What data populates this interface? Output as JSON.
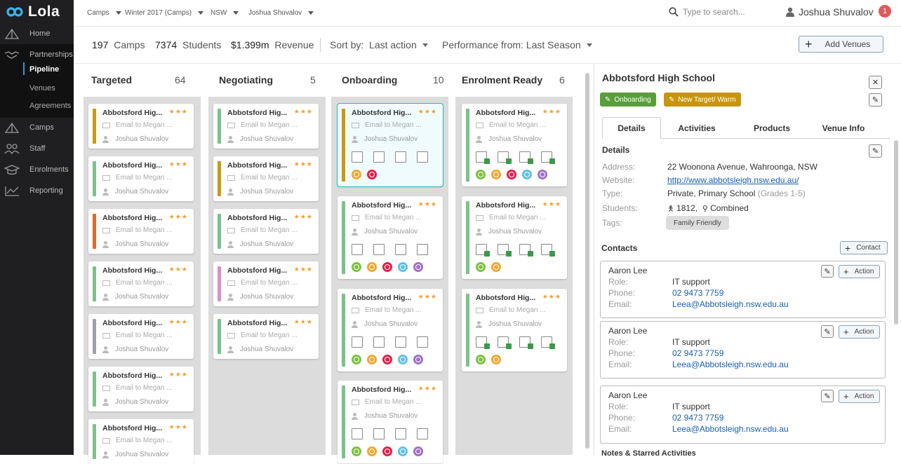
{
  "app": {
    "name": "Lola"
  },
  "sidebar": {
    "nav": [
      {
        "label": "Home",
        "icon": "home-icon"
      },
      {
        "label": "Partnerships",
        "icon": "handshake-icon"
      },
      {
        "label": "Camps",
        "icon": "tent-icon"
      },
      {
        "label": "Staff",
        "icon": "staff-icon"
      },
      {
        "label": "Enrolments",
        "icon": "graduation-cap-icon"
      },
      {
        "label": "Reporting",
        "icon": "line-chart-icon"
      }
    ],
    "sub": [
      {
        "label": "Pipeline",
        "active": true
      },
      {
        "label": "Venues"
      },
      {
        "label": "Agreements"
      }
    ]
  },
  "topbar": {
    "crumbs": [
      "Camps",
      "Winter 2017 (Camps)",
      "NSW",
      "Joshua Shuvalov"
    ],
    "search_placeholder": "Type to search...",
    "user": "Joshua Shuvalov",
    "notifications": "1"
  },
  "stats": {
    "camps_num": "197",
    "camps_label": "Camps",
    "students_num": "7374",
    "students_label": "Students",
    "revenue_num": "$1.399m",
    "revenue_label": "Revenue",
    "sort_label": "Sort by:",
    "sort_value": "Last action",
    "perf_label": "Performance from:",
    "perf_value": "Last Season",
    "add_venues": "Add Venues"
  },
  "card_text": {
    "title": "Abbotsford Hig...",
    "stars": "★★★",
    "email": "Email to Megan ...",
    "user": "Joshua Shuvalov"
  },
  "columns": [
    {
      "name": "Targeted",
      "count": "64"
    },
    {
      "name": "Negotiating",
      "count": "5"
    },
    {
      "name": "Onboarding",
      "count": "10"
    },
    {
      "name": "Enrolment Ready",
      "count": "6"
    }
  ],
  "colors": {
    "gold": "#c99a17",
    "green": "#7cc28a",
    "orange": "#e06a24",
    "grey": "#9aa4a8",
    "pink": "#d890c8",
    "dot_green": "#7cc040",
    "dot_orange": "#f0a830",
    "dot_red": "#e0204a",
    "dot_blue": "#60c0e8",
    "dot_purple": "#a070c8"
  },
  "detail": {
    "title": "Abbotsford High School",
    "tag1": "Onboarding",
    "tag2": "New Target/ Warm",
    "tabs": [
      "Details",
      "Activities",
      "Products",
      "Venue Info"
    ],
    "section_details": "Details",
    "address_label": "Address:",
    "address": "22 Woonona Avenue, Wahroonga, NSW",
    "website_label": "Website:",
    "website": "http://www.abbotsleigh.nsw.edu.au/",
    "type_label": "Type:",
    "type": "Private, Primary School",
    "type_grades": "(Grades 1-5)",
    "students_label": "Students:",
    "students_count": "1812,",
    "students_kind": "Combined",
    "tags_label": "Tags:",
    "tag_chip": "Family Friendly",
    "section_contacts": "Contacts",
    "contact_button": "Contact",
    "contacts": [
      {
        "name": "Aaron Lee",
        "role": "IT support",
        "phone": "02 9473 7759",
        "email": "Leea@Abbotsleigh.nsw.edu.au"
      },
      {
        "name": "Aaron Lee",
        "role": "IT support",
        "phone": "02 9473 7759",
        "email": "Leea@Abbotsleigh.nsw.edu.au"
      },
      {
        "name": "Aaron Lee",
        "role": "IT support",
        "phone": "02 9473 7759",
        "email": "Leea@Abbotsleigh.nsw.edu.au"
      }
    ],
    "role_label": "Role:",
    "phone_label": "Phone:",
    "email_label": "Email:",
    "action_label": "Action",
    "notes_title": "Notes & Starred Activities"
  }
}
